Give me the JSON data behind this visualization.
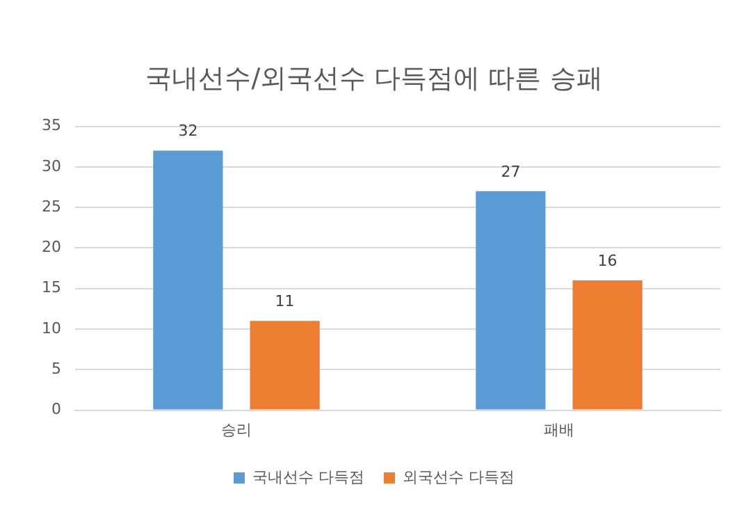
{
  "chart_data": {
    "type": "bar",
    "title": "국내선수/외국선수 다득점에 따른 승패",
    "categories": [
      "승리",
      "패배"
    ],
    "series": [
      {
        "name": "국내선수 다득점",
        "color": "#5b9bd5",
        "values": [
          32,
          27
        ]
      },
      {
        "name": "외국선수 다득점",
        "color": "#ed7d31",
        "values": [
          11,
          16
        ]
      }
    ],
    "ylim": [
      0,
      35
    ],
    "yticks": [
      0,
      5,
      10,
      15,
      20,
      25,
      30,
      35
    ],
    "grid": "y",
    "legend": "bottom",
    "data_labels": true
  }
}
